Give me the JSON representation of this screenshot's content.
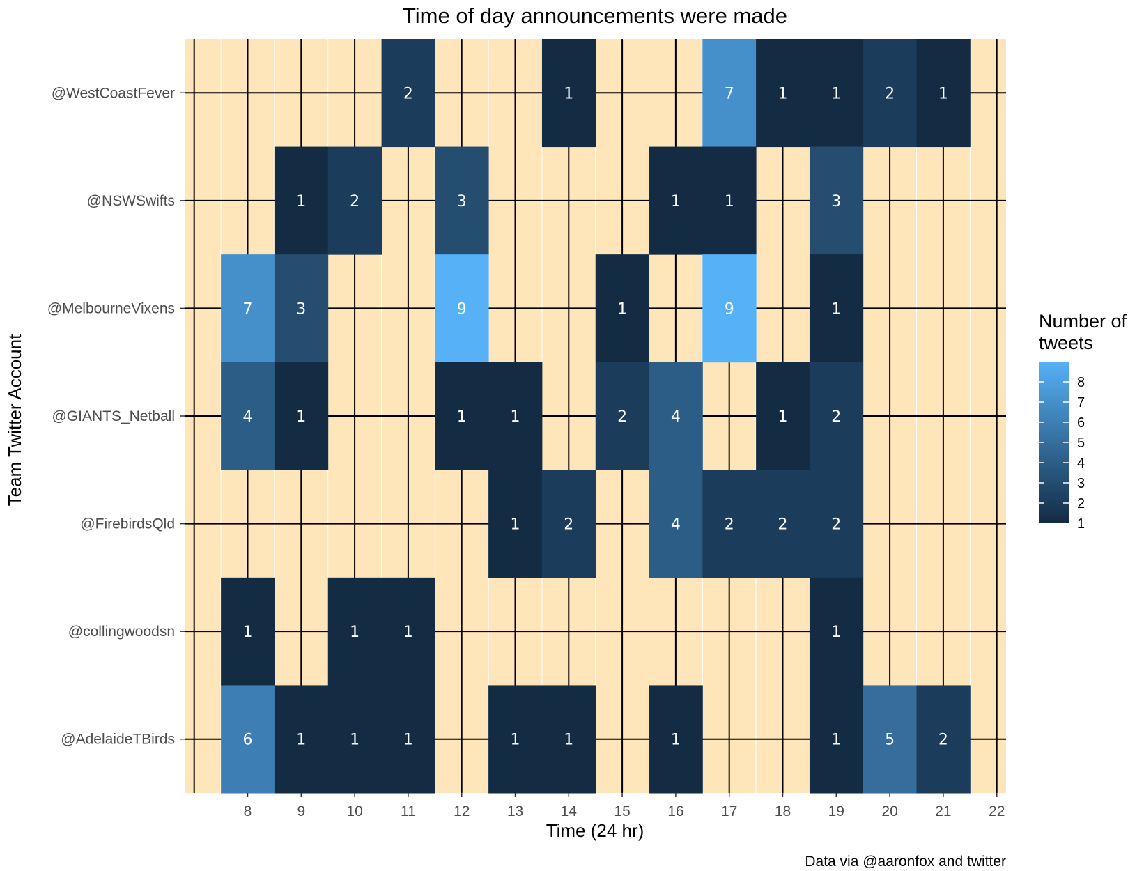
{
  "chart_data": {
    "type": "heatmap",
    "title": "Time of day announcements were made",
    "xlabel": "Time (24 hr)",
    "ylabel": "Team Twitter Account",
    "caption": "Data via @aaronfox and twitter",
    "x_ticks": [
      8,
      9,
      10,
      11,
      12,
      13,
      14,
      15,
      16,
      17,
      18,
      19,
      20,
      21,
      22
    ],
    "xlim": [
      7,
      22
    ],
    "rows": [
      "@WestCoastFever",
      "@NSWSwifts",
      "@MelbourneVixens",
      "@GIANTS_Netball",
      "@FirebirdsQld",
      "@collingwoodsn",
      "@AdelaideTBirds"
    ],
    "cells": [
      {
        "team": "@WestCoastFever",
        "hour": 11,
        "count": 2
      },
      {
        "team": "@WestCoastFever",
        "hour": 14,
        "count": 1
      },
      {
        "team": "@WestCoastFever",
        "hour": 17,
        "count": 7
      },
      {
        "team": "@WestCoastFever",
        "hour": 18,
        "count": 1
      },
      {
        "team": "@WestCoastFever",
        "hour": 19,
        "count": 1
      },
      {
        "team": "@WestCoastFever",
        "hour": 20,
        "count": 2
      },
      {
        "team": "@WestCoastFever",
        "hour": 21,
        "count": 1
      },
      {
        "team": "@NSWSwifts",
        "hour": 9,
        "count": 1
      },
      {
        "team": "@NSWSwifts",
        "hour": 10,
        "count": 2
      },
      {
        "team": "@NSWSwifts",
        "hour": 12,
        "count": 3
      },
      {
        "team": "@NSWSwifts",
        "hour": 16,
        "count": 1
      },
      {
        "team": "@NSWSwifts",
        "hour": 17,
        "count": 1
      },
      {
        "team": "@NSWSwifts",
        "hour": 19,
        "count": 3
      },
      {
        "team": "@MelbourneVixens",
        "hour": 8,
        "count": 7
      },
      {
        "team": "@MelbourneVixens",
        "hour": 9,
        "count": 3
      },
      {
        "team": "@MelbourneVixens",
        "hour": 12,
        "count": 9
      },
      {
        "team": "@MelbourneVixens",
        "hour": 15,
        "count": 1
      },
      {
        "team": "@MelbourneVixens",
        "hour": 17,
        "count": 9
      },
      {
        "team": "@MelbourneVixens",
        "hour": 19,
        "count": 1
      },
      {
        "team": "@GIANTS_Netball",
        "hour": 8,
        "count": 4
      },
      {
        "team": "@GIANTS_Netball",
        "hour": 9,
        "count": 1
      },
      {
        "team": "@GIANTS_Netball",
        "hour": 12,
        "count": 1
      },
      {
        "team": "@GIANTS_Netball",
        "hour": 13,
        "count": 1
      },
      {
        "team": "@GIANTS_Netball",
        "hour": 15,
        "count": 2
      },
      {
        "team": "@GIANTS_Netball",
        "hour": 16,
        "count": 4
      },
      {
        "team": "@GIANTS_Netball",
        "hour": 18,
        "count": 1
      },
      {
        "team": "@GIANTS_Netball",
        "hour": 19,
        "count": 2
      },
      {
        "team": "@FirebirdsQld",
        "hour": 13,
        "count": 1
      },
      {
        "team": "@FirebirdsQld",
        "hour": 14,
        "count": 2
      },
      {
        "team": "@FirebirdsQld",
        "hour": 16,
        "count": 4
      },
      {
        "team": "@FirebirdsQld",
        "hour": 17,
        "count": 2
      },
      {
        "team": "@FirebirdsQld",
        "hour": 18,
        "count": 2
      },
      {
        "team": "@FirebirdsQld",
        "hour": 19,
        "count": 2
      },
      {
        "team": "@collingwoodsn",
        "hour": 8,
        "count": 1
      },
      {
        "team": "@collingwoodsn",
        "hour": 10,
        "count": 1
      },
      {
        "team": "@collingwoodsn",
        "hour": 11,
        "count": 1
      },
      {
        "team": "@collingwoodsn",
        "hour": 19,
        "count": 1
      },
      {
        "team": "@AdelaideTBirds",
        "hour": 8,
        "count": 6
      },
      {
        "team": "@AdelaideTBirds",
        "hour": 9,
        "count": 1
      },
      {
        "team": "@AdelaideTBirds",
        "hour": 10,
        "count": 1
      },
      {
        "team": "@AdelaideTBirds",
        "hour": 11,
        "count": 1
      },
      {
        "team": "@AdelaideTBirds",
        "hour": 13,
        "count": 1
      },
      {
        "team": "@AdelaideTBirds",
        "hour": 14,
        "count": 1
      },
      {
        "team": "@AdelaideTBirds",
        "hour": 16,
        "count": 1
      },
      {
        "team": "@AdelaideTBirds",
        "hour": 19,
        "count": 1
      },
      {
        "team": "@AdelaideTBirds",
        "hour": 20,
        "count": 5
      },
      {
        "team": "@AdelaideTBirds",
        "hour": 21,
        "count": 2
      }
    ],
    "legend": {
      "title": "Number of tweets",
      "title_lines": [
        "Number of",
        "tweets"
      ],
      "ticks": [
        1,
        2,
        3,
        4,
        5,
        6,
        7,
        8
      ],
      "range": [
        1,
        9
      ],
      "position": "right"
    },
    "colors": {
      "low": "#132B43",
      "high": "#56B1F7",
      "panel_background": "#FFE6BA",
      "grid_line": "#000000",
      "minor_grid": "#ffffff"
    }
  }
}
